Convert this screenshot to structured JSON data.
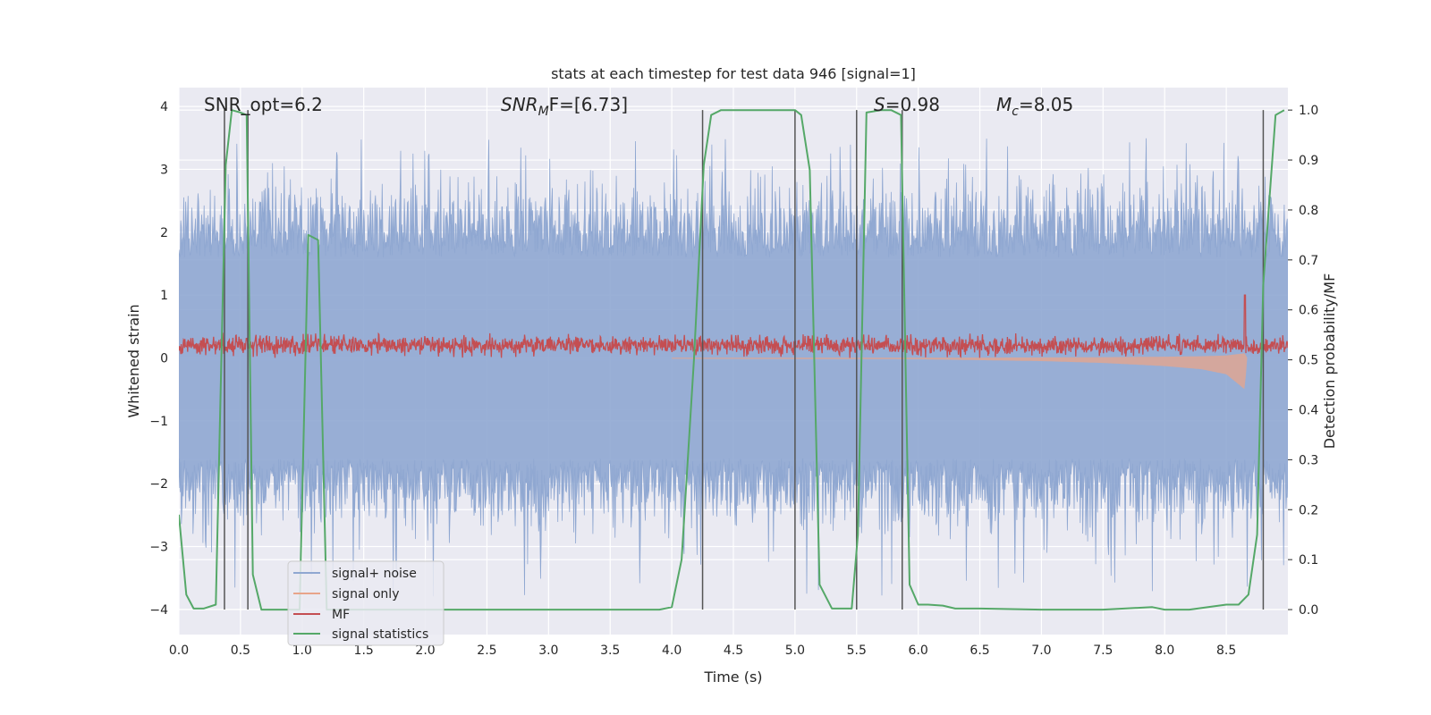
{
  "chart_data": {
    "type": "line",
    "title": "stats at each timestep for test data 946 [signal=1]",
    "xlabel": "Time (s)",
    "ylabel": "Whitened strain",
    "y2label": "Detection probability/MF",
    "xlim": [
      0.0,
      9.0
    ],
    "ylim": [
      -4.4,
      4.3
    ],
    "y2lim": [
      -0.05,
      1.045
    ],
    "x_ticks": [
      "0.0",
      "0.5",
      "1.0",
      "1.5",
      "2.0",
      "2.5",
      "3.0",
      "3.5",
      "4.0",
      "4.5",
      "5.0",
      "5.5",
      "6.0",
      "6.5",
      "7.0",
      "7.5",
      "8.0",
      "8.5"
    ],
    "y_ticks": [
      "4",
      "3",
      "2",
      "1",
      "0",
      "−1",
      "−2",
      "−3",
      "−4"
    ],
    "y2_ticks": [
      "1.0",
      "0.9",
      "0.8",
      "0.7",
      "0.6",
      "0.5",
      "0.4",
      "0.3",
      "0.2",
      "0.1",
      "0.0"
    ],
    "grid": true,
    "legend_position": "lower-left",
    "colors": {
      "signal_noise": "#8fa7d1",
      "signal_only": "#e8a48a",
      "mf": "#c44e52",
      "statistics": "#55a868",
      "vlines": "#555555",
      "background": "#eaeaf2"
    },
    "annotations": {
      "snr_opt": "SNR_opt=6.2",
      "snr_mf_main": "SNR",
      "snr_mf_sub": "M",
      "snr_mf_rest": "F=[6.73]",
      "s_main": "S",
      "s_rest": "=0.98",
      "mc_main": "M",
      "mc_sub": "c",
      "mc_rest": "=8.05"
    },
    "series": [
      {
        "name": "signal+ noise",
        "style": "noise band",
        "envelope_mean": 1.6,
        "envelope_peak": 3.5,
        "lower_mean": -1.6,
        "lower_peak": -3.8
      },
      {
        "name": "signal only",
        "style": "chirp",
        "x": [
          0.0,
          6.0,
          7.0,
          7.5,
          8.0,
          8.3,
          8.5,
          8.65,
          8.67
        ],
        "amplitude": [
          0.0,
          0.02,
          0.05,
          0.08,
          0.13,
          0.18,
          0.26,
          0.5,
          0.0
        ]
      },
      {
        "name": "MF",
        "style": "noisy",
        "base": 0.2,
        "spread": 0.12,
        "spike_x": 8.65,
        "spike_y": 1.0
      },
      {
        "name": "signal statistics",
        "axis": "right",
        "x": [
          0.0,
          0.06,
          0.12,
          0.2,
          0.3,
          0.3,
          0.38,
          0.43,
          0.5,
          0.55,
          0.6,
          0.67,
          0.75,
          0.85,
          0.98,
          1.05,
          1.13,
          1.2,
          1.3,
          1.5,
          2.0,
          2.5,
          3.0,
          3.5,
          3.9,
          4.0,
          4.08,
          4.18,
          4.26,
          4.32,
          4.4,
          4.5,
          4.9,
          5.0,
          5.05,
          5.12,
          5.2,
          5.3,
          5.46,
          5.51,
          5.58,
          5.7,
          5.78,
          5.86,
          5.93,
          6.0,
          6.08,
          6.2,
          6.3,
          6.5,
          7.0,
          7.5,
          7.9,
          8.0,
          8.2,
          8.5,
          8.6,
          8.68,
          8.75,
          8.8,
          8.9,
          8.97
        ],
        "values": [
          0.19,
          0.03,
          0.002,
          0.002,
          0.01,
          0.01,
          0.89,
          1.0,
          0.995,
          0.99,
          0.07,
          0.0,
          0.0,
          0.0,
          0.0,
          0.75,
          0.74,
          0.0,
          0.0,
          0.0,
          0.0,
          0.0,
          0.0,
          0.0,
          0.0,
          0.005,
          0.1,
          0.5,
          0.89,
          0.99,
          1.0,
          1.0,
          1.0,
          1.0,
          0.99,
          0.88,
          0.05,
          0.002,
          0.002,
          0.15,
          0.995,
          1.0,
          1.0,
          0.99,
          0.05,
          0.01,
          0.01,
          0.008,
          0.002,
          0.002,
          0.0,
          0.0,
          0.005,
          0.0,
          0.0,
          0.01,
          0.01,
          0.03,
          0.15,
          0.65,
          0.99,
          1.0
        ]
      },
      {
        "name": "vertical markers",
        "x": [
          0.37,
          0.56,
          4.25,
          5.0,
          5.5,
          5.87,
          8.8
        ]
      }
    ],
    "legend": [
      {
        "label": "signal+ noise",
        "color_key": "signal_noise"
      },
      {
        "label": "signal only",
        "color_key": "signal_only"
      },
      {
        "label": "MF",
        "color_key": "mf"
      },
      {
        "label": "signal statistics",
        "color_key": "statistics"
      }
    ]
  }
}
